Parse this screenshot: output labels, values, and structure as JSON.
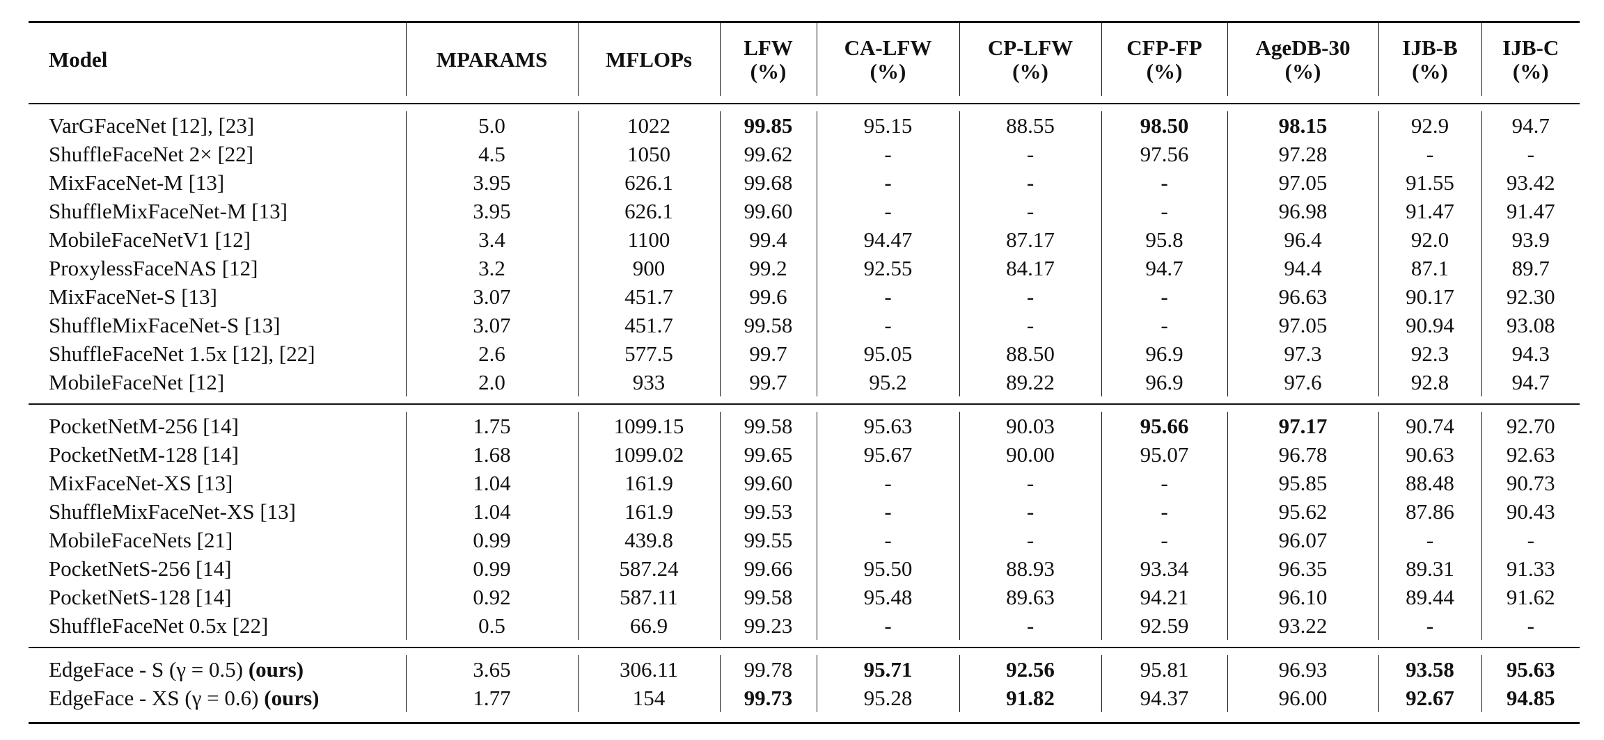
{
  "table": {
    "header": [
      {
        "name": "Model"
      },
      {
        "name": "MPARAMS"
      },
      {
        "name": "MFLOPs"
      },
      {
        "name": "LFW",
        "unit": "(%)"
      },
      {
        "name": "CA-LFW",
        "unit": "(%)"
      },
      {
        "name": "CP-LFW",
        "unit": "(%)"
      },
      {
        "name": "CFP-FP",
        "unit": "(%)"
      },
      {
        "name": "AgeDB-30",
        "unit": "(%)"
      },
      {
        "name": "IJB-B",
        "unit": "(%)"
      },
      {
        "name": "IJB-C",
        "unit": "(%)"
      }
    ],
    "groups": [
      [
        {
          "model": "VarGFaceNet [12], [23]",
          "cells": [
            "5.0",
            "1022",
            "99.85",
            "95.15",
            "88.55",
            "98.50",
            "98.15",
            "92.9",
            "94.7"
          ],
          "bold": [
            2,
            5,
            6
          ]
        },
        {
          "model": "ShuffleFaceNet 2× [22]",
          "cells": [
            "4.5",
            "1050",
            "99.62",
            "-",
            "-",
            "97.56",
            "97.28",
            "-",
            "-"
          ]
        },
        {
          "model": "MixFaceNet-M [13]",
          "cells": [
            "3.95",
            "626.1",
            "99.68",
            "-",
            "-",
            "-",
            "97.05",
            "91.55",
            "93.42"
          ]
        },
        {
          "model": "ShuffleMixFaceNet-M [13]",
          "cells": [
            "3.95",
            "626.1",
            "99.60",
            "-",
            "-",
            "-",
            "96.98",
            "91.47",
            "91.47"
          ]
        },
        {
          "model": "MobileFaceNetV1 [12]",
          "cells": [
            "3.4",
            "1100",
            "99.4",
            "94.47",
            "87.17",
            "95.8",
            "96.4",
            "92.0",
            "93.9"
          ]
        },
        {
          "model": "ProxylessFaceNAS [12]",
          "cells": [
            "3.2",
            "900",
            "99.2",
            "92.55",
            "84.17",
            "94.7",
            "94.4",
            "87.1",
            "89.7"
          ]
        },
        {
          "model": "MixFaceNet-S [13]",
          "cells": [
            "3.07",
            "451.7",
            "99.6",
            "-",
            "-",
            "-",
            "96.63",
            "90.17",
            "92.30"
          ]
        },
        {
          "model": "ShuffleMixFaceNet-S [13]",
          "cells": [
            "3.07",
            "451.7",
            "99.58",
            "-",
            "-",
            "-",
            "97.05",
            "90.94",
            "93.08"
          ]
        },
        {
          "model": "ShuffleFaceNet 1.5x [12], [22]",
          "cells": [
            "2.6",
            "577.5",
            "99.7",
            "95.05",
            "88.50",
            "96.9",
            "97.3",
            "92.3",
            "94.3"
          ]
        },
        {
          "model": "MobileFaceNet [12]",
          "cells": [
            "2.0",
            "933",
            "99.7",
            "95.2",
            "89.22",
            "96.9",
            "97.6",
            "92.8",
            "94.7"
          ]
        }
      ],
      [
        {
          "model": "PocketNetM-256 [14]",
          "cells": [
            "1.75",
            "1099.15",
            "99.58",
            "95.63",
            "90.03",
            "95.66",
            "97.17",
            "90.74",
            "92.70"
          ],
          "bold": [
            5,
            6
          ]
        },
        {
          "model": "PocketNetM-128 [14]",
          "cells": [
            "1.68",
            "1099.02",
            "99.65",
            "95.67",
            "90.00",
            "95.07",
            "96.78",
            "90.63",
            "92.63"
          ]
        },
        {
          "model": "MixFaceNet-XS [13]",
          "cells": [
            "1.04",
            "161.9",
            "99.60",
            "-",
            "-",
            "-",
            "95.85",
            "88.48",
            "90.73"
          ]
        },
        {
          "model": "ShuffleMixFaceNet-XS [13]",
          "cells": [
            "1.04",
            "161.9",
            "99.53",
            "-",
            "-",
            "-",
            "95.62",
            "87.86",
            "90.43"
          ]
        },
        {
          "model": "MobileFaceNets [21]",
          "cells": [
            "0.99",
            "439.8",
            "99.55",
            "-",
            "-",
            "-",
            "96.07",
            "-",
            "-"
          ]
        },
        {
          "model": "PocketNetS-256 [14]",
          "cells": [
            "0.99",
            "587.24",
            "99.66",
            "95.50",
            "88.93",
            "93.34",
            "96.35",
            "89.31",
            "91.33"
          ]
        },
        {
          "model": "PocketNetS-128 [14]",
          "cells": [
            "0.92",
            "587.11",
            "99.58",
            "95.48",
            "89.63",
            "94.21",
            "96.10",
            "89.44",
            "91.62"
          ]
        },
        {
          "model": "ShuffleFaceNet 0.5x [22]",
          "cells": [
            "0.5",
            "66.9",
            "99.23",
            "-",
            "-",
            "92.59",
            "93.22",
            "-",
            "-"
          ]
        }
      ],
      [
        {
          "model": "EdgeFace - S (γ = 0.5)",
          "tag": "(ours)",
          "cells": [
            "3.65",
            "306.11",
            "99.78",
            "95.71",
            "92.56",
            "95.81",
            "96.93",
            "93.58",
            "95.63"
          ],
          "bold": [
            3,
            4,
            7,
            8
          ]
        },
        {
          "model": "EdgeFace - XS (γ = 0.6)",
          "tag": "(ours)",
          "cells": [
            "1.77",
            "154",
            "99.73",
            "95.28",
            "91.82",
            "94.37",
            "96.00",
            "92.67",
            "94.85"
          ],
          "bold": [
            2,
            4,
            7,
            8
          ]
        }
      ]
    ]
  }
}
